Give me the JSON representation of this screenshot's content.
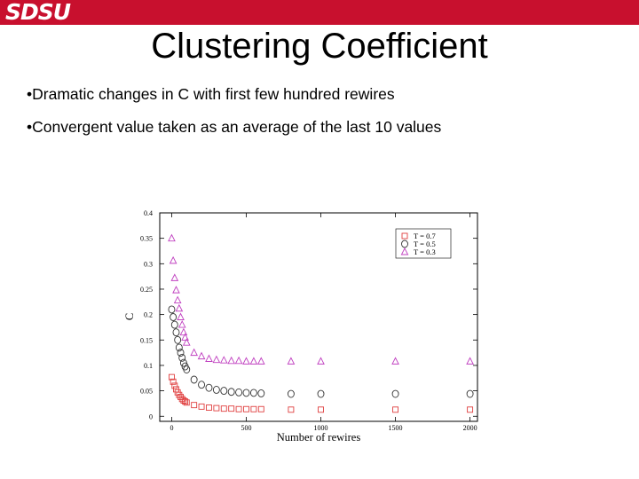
{
  "header": {
    "logo_text": "SDSU",
    "accent_color": "#c8102e"
  },
  "slide": {
    "title": "Clustering Coefficient",
    "bullets": [
      "Dramatic changes in C with first few hundred rewires",
      "Convergent value taken as an average of the last 10 values"
    ],
    "bullet_marker": "•"
  },
  "chart_data": {
    "type": "scatter",
    "title": "",
    "xlabel": "Number of rewires",
    "ylabel": "C",
    "xlim": [
      -80,
      2050
    ],
    "ylim": [
      -0.01,
      0.4
    ],
    "xticks": [
      0,
      500,
      1000,
      1500,
      2000
    ],
    "xtick_labels": [
      "0",
      "500",
      "1000",
      "1500",
      "2000"
    ],
    "yticks": [
      0,
      0.05,
      0.1,
      0.15,
      0.2,
      0.25,
      0.3,
      0.35,
      0.4
    ],
    "ytick_labels": [
      "0",
      "0.05",
      "0.1",
      "0.15",
      "0.2",
      "0.25",
      "0.3",
      "0.35",
      "0.4"
    ],
    "grid": false,
    "legend": "top-right",
    "x": [
      0,
      10,
      20,
      30,
      40,
      50,
      60,
      70,
      80,
      90,
      100,
      150,
      200,
      250,
      300,
      350,
      400,
      450,
      500,
      550,
      600,
      800,
      1000,
      1500,
      2000
    ],
    "series": [
      {
        "name": "T = 0.7",
        "marker": "square",
        "color": "#e04040",
        "values": [
          0.077,
          0.068,
          0.06,
          0.053,
          0.047,
          0.042,
          0.038,
          0.034,
          0.031,
          0.029,
          0.027,
          0.022,
          0.019,
          0.017,
          0.016,
          0.015,
          0.015,
          0.014,
          0.014,
          0.014,
          0.014,
          0.013,
          0.013,
          0.013,
          0.013
        ]
      },
      {
        "name": "T = 0.5",
        "marker": "circle",
        "color": "#333333",
        "values": [
          0.21,
          0.195,
          0.18,
          0.165,
          0.15,
          0.135,
          0.125,
          0.115,
          0.105,
          0.098,
          0.092,
          0.072,
          0.062,
          0.056,
          0.052,
          0.05,
          0.048,
          0.047,
          0.046,
          0.046,
          0.045,
          0.044,
          0.044,
          0.044,
          0.044
        ]
      },
      {
        "name": "T = 0.3",
        "marker": "triangle",
        "color": "#c040c0",
        "values": [
          0.35,
          0.306,
          0.272,
          0.248,
          0.228,
          0.212,
          0.195,
          0.18,
          0.165,
          0.155,
          0.145,
          0.125,
          0.118,
          0.113,
          0.111,
          0.11,
          0.109,
          0.109,
          0.108,
          0.108,
          0.108,
          0.108,
          0.108,
          0.108,
          0.108
        ]
      }
    ]
  }
}
